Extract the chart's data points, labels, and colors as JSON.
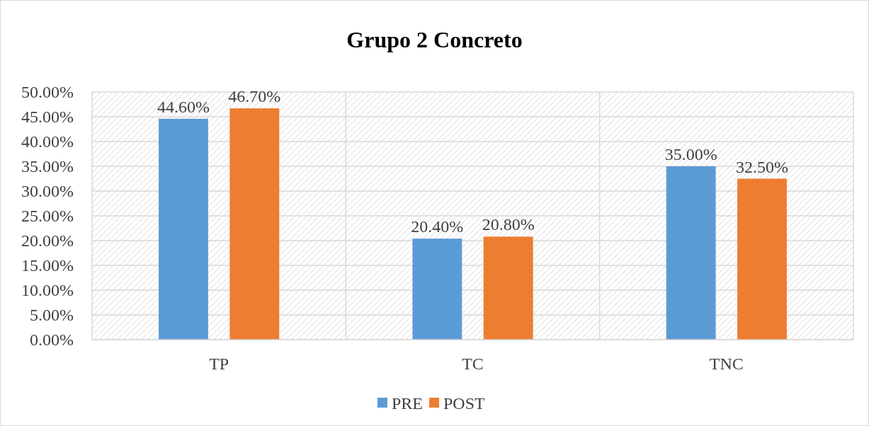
{
  "chart_data": {
    "type": "bar",
    "title": "Grupo 2 Concreto",
    "categories": [
      "TP",
      "TC",
      "TNC"
    ],
    "series": [
      {
        "name": "PRE",
        "color": "#5b9bd5",
        "values": [
          44.6,
          20.4,
          35.0
        ],
        "value_labels": [
          "44.60%",
          "20.40%",
          "35.00%"
        ]
      },
      {
        "name": "POST",
        "color": "#ed7d31",
        "values": [
          46.7,
          20.8,
          32.5
        ],
        "value_labels": [
          "46.70%",
          "20.80%",
          "32.50%"
        ]
      }
    ],
    "ylim": [
      0,
      50
    ],
    "yticks": [
      {
        "value": 0,
        "label": "0.00%"
      },
      {
        "value": 5,
        "label": "5.00%"
      },
      {
        "value": 10,
        "label": "10.00%"
      },
      {
        "value": 15,
        "label": "15.00%"
      },
      {
        "value": 20,
        "label": "20.00%"
      },
      {
        "value": 25,
        "label": "25.00%"
      },
      {
        "value": 30,
        "label": "30.00%"
      },
      {
        "value": 35,
        "label": "35.00%"
      },
      {
        "value": 40,
        "label": "40.00%"
      },
      {
        "value": 45,
        "label": "45.00%"
      },
      {
        "value": 50,
        "label": "50.00%"
      }
    ],
    "grid": true,
    "legend": "bottom"
  }
}
